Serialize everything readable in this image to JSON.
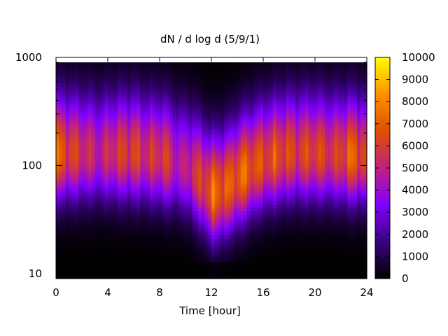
{
  "chart_data": {
    "type": "heatmap",
    "title": "dN / d log d (5/9/1)",
    "xlabel": "Time [hour]",
    "ylabel": "",
    "xlim": [
      0,
      24
    ],
    "ylim": [
      9,
      1000
    ],
    "y_scale": "log",
    "x_ticks": [
      0,
      4,
      8,
      12,
      16,
      20,
      24
    ],
    "x_tick_labels": [
      "0",
      "4",
      "8",
      "12",
      "16",
      "20",
      "24"
    ],
    "y_ticks": [
      10,
      100,
      1000
    ],
    "y_tick_labels": [
      "10",
      "100",
      "1000"
    ],
    "colorbar": {
      "range": [
        0,
        10000
      ],
      "ticks": [
        0,
        1000,
        2000,
        3000,
        4000,
        5000,
        6000,
        7000,
        8000,
        9000,
        10000
      ],
      "tick_labels": [
        "0",
        "1000",
        "2000",
        "3000",
        "4000",
        "5000",
        "6000",
        "7000",
        "8000",
        "9000",
        "10000"
      ],
      "colormap": [
        "#000000",
        "#3a0080",
        "#8000ff",
        "#c02080",
        "#e05000",
        "#ff9000",
        "#ffff00"
      ]
    },
    "peak_diameter_by_hour": [
      {
        "t": 0,
        "d": 130
      },
      {
        "t": 2,
        "d": 130
      },
      {
        "t": 4,
        "d": 130
      },
      {
        "t": 6,
        "d": 130
      },
      {
        "t": 8,
        "d": 120
      },
      {
        "t": 10,
        "d": 100
      },
      {
        "t": 12,
        "d": 55
      },
      {
        "t": 13,
        "d": 60
      },
      {
        "t": 14,
        "d": 75
      },
      {
        "t": 16,
        "d": 110
      },
      {
        "t": 18,
        "d": 130
      },
      {
        "t": 20,
        "d": 130
      },
      {
        "t": 22,
        "d": 125
      },
      {
        "t": 24,
        "d": 120
      }
    ],
    "peak_intensity_by_hour": [
      {
        "t": 0,
        "v": 7000
      },
      {
        "t": 1,
        "v": 6200
      },
      {
        "t": 2,
        "v": 5600
      },
      {
        "t": 3.4,
        "v": 4800
      },
      {
        "t": 4.5,
        "v": 5700
      },
      {
        "t": 6,
        "v": 6100
      },
      {
        "t": 7,
        "v": 5400
      },
      {
        "t": 8.4,
        "v": 6000
      },
      {
        "t": 9.5,
        "v": 4400
      },
      {
        "t": 11.5,
        "v": 6300
      },
      {
        "t": 12.4,
        "v": 7300
      },
      {
        "t": 13.2,
        "v": 6600
      },
      {
        "t": 14.3,
        "v": 7200
      },
      {
        "t": 16,
        "v": 6300
      },
      {
        "t": 17,
        "v": 6500
      },
      {
        "t": 18.5,
        "v": 6000
      },
      {
        "t": 20,
        "v": 6300
      },
      {
        "t": 21.5,
        "v": 5700
      },
      {
        "t": 22.8,
        "v": 7000
      },
      {
        "t": 24,
        "v": 6000
      }
    ]
  }
}
